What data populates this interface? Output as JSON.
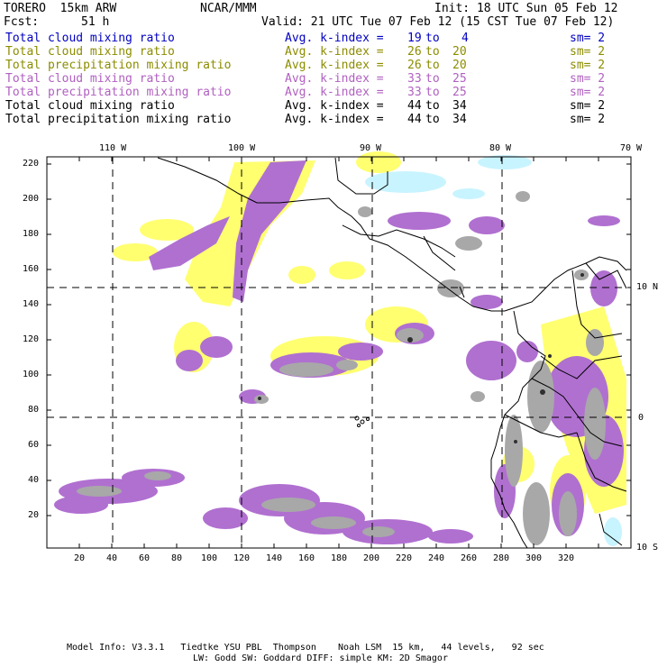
{
  "header": {
    "model": "TORERO  15km ARW",
    "org": "NCAR/MMM",
    "init": "Init: 18 UTC Sun 05 Feb 12",
    "fcst_label": "Fcst:",
    "fcst_value": "51 h",
    "valid": "Valid: 21 UTC Tue 07 Feb 12 (15 CST Tue 07 Feb 12)"
  },
  "legend": [
    {
      "field": "Total cloud mixing ratio",
      "kindex": "Avg. k-index =",
      "lo": "19",
      "to": "to",
      "hi": "4",
      "sm": "sm= 2",
      "color": "#0000c0"
    },
    {
      "field": "Total cloud mixing ratio",
      "kindex": "Avg. k-index =",
      "lo": "26",
      "to": "to",
      "hi": "20",
      "sm": "sm= 2",
      "color": "#8c8c00"
    },
    {
      "field": "Total precipitation mixing ratio",
      "kindex": "Avg. k-index =",
      "lo": "26",
      "to": "to",
      "hi": "20",
      "sm": "sm= 2",
      "color": "#8c8c00"
    },
    {
      "field": "Total cloud mixing ratio",
      "kindex": "Avg. k-index =",
      "lo": "33",
      "to": "to",
      "hi": "25",
      "sm": "sm= 2",
      "color": "#b060c0"
    },
    {
      "field": "Total precipitation mixing ratio",
      "kindex": "Avg. k-index =",
      "lo": "33",
      "to": "to",
      "hi": "25",
      "sm": "sm= 2",
      "color": "#b060c0"
    },
    {
      "field": "Total cloud mixing ratio",
      "kindex": "Avg. k-index =",
      "lo": "44",
      "to": "to",
      "hi": "34",
      "sm": "sm= 2",
      "color": "#000000"
    },
    {
      "field": "Total precipitation mixing ratio",
      "kindex": "Avg. k-index =",
      "lo": "44",
      "to": "to",
      "hi": "34",
      "sm": "sm= 2",
      "color": "#000000"
    }
  ],
  "map": {
    "lon_labels": [
      "110 W",
      "100 W",
      "90 W",
      "80 W",
      "70 W"
    ],
    "lat_labels": [
      "10 N",
      "0",
      "10 S"
    ],
    "x_ticks": [
      "20",
      "40",
      "60",
      "80",
      "100",
      "120",
      "140",
      "160",
      "180",
      "200",
      "220",
      "240",
      "260",
      "280",
      "300",
      "320"
    ],
    "y_ticks": [
      "20",
      "40",
      "60",
      "80",
      "100",
      "120",
      "140",
      "160",
      "180",
      "200",
      "220"
    ],
    "colors": {
      "purple": "#b070d0",
      "yellow": "#ffff70",
      "gray": "#a8a8a8",
      "dark": "#303030",
      "cyan": "#c8f4ff",
      "line": "#000000"
    }
  },
  "footer": {
    "line1": "Model Info: V3.3.1   Tiedtke YSU PBL  Thompson    Noah LSM  15 km,   44 levels,   92 sec",
    "line2": "LW: Godd SW: Goddard DIFF: simple KM: 2D Smagor"
  }
}
